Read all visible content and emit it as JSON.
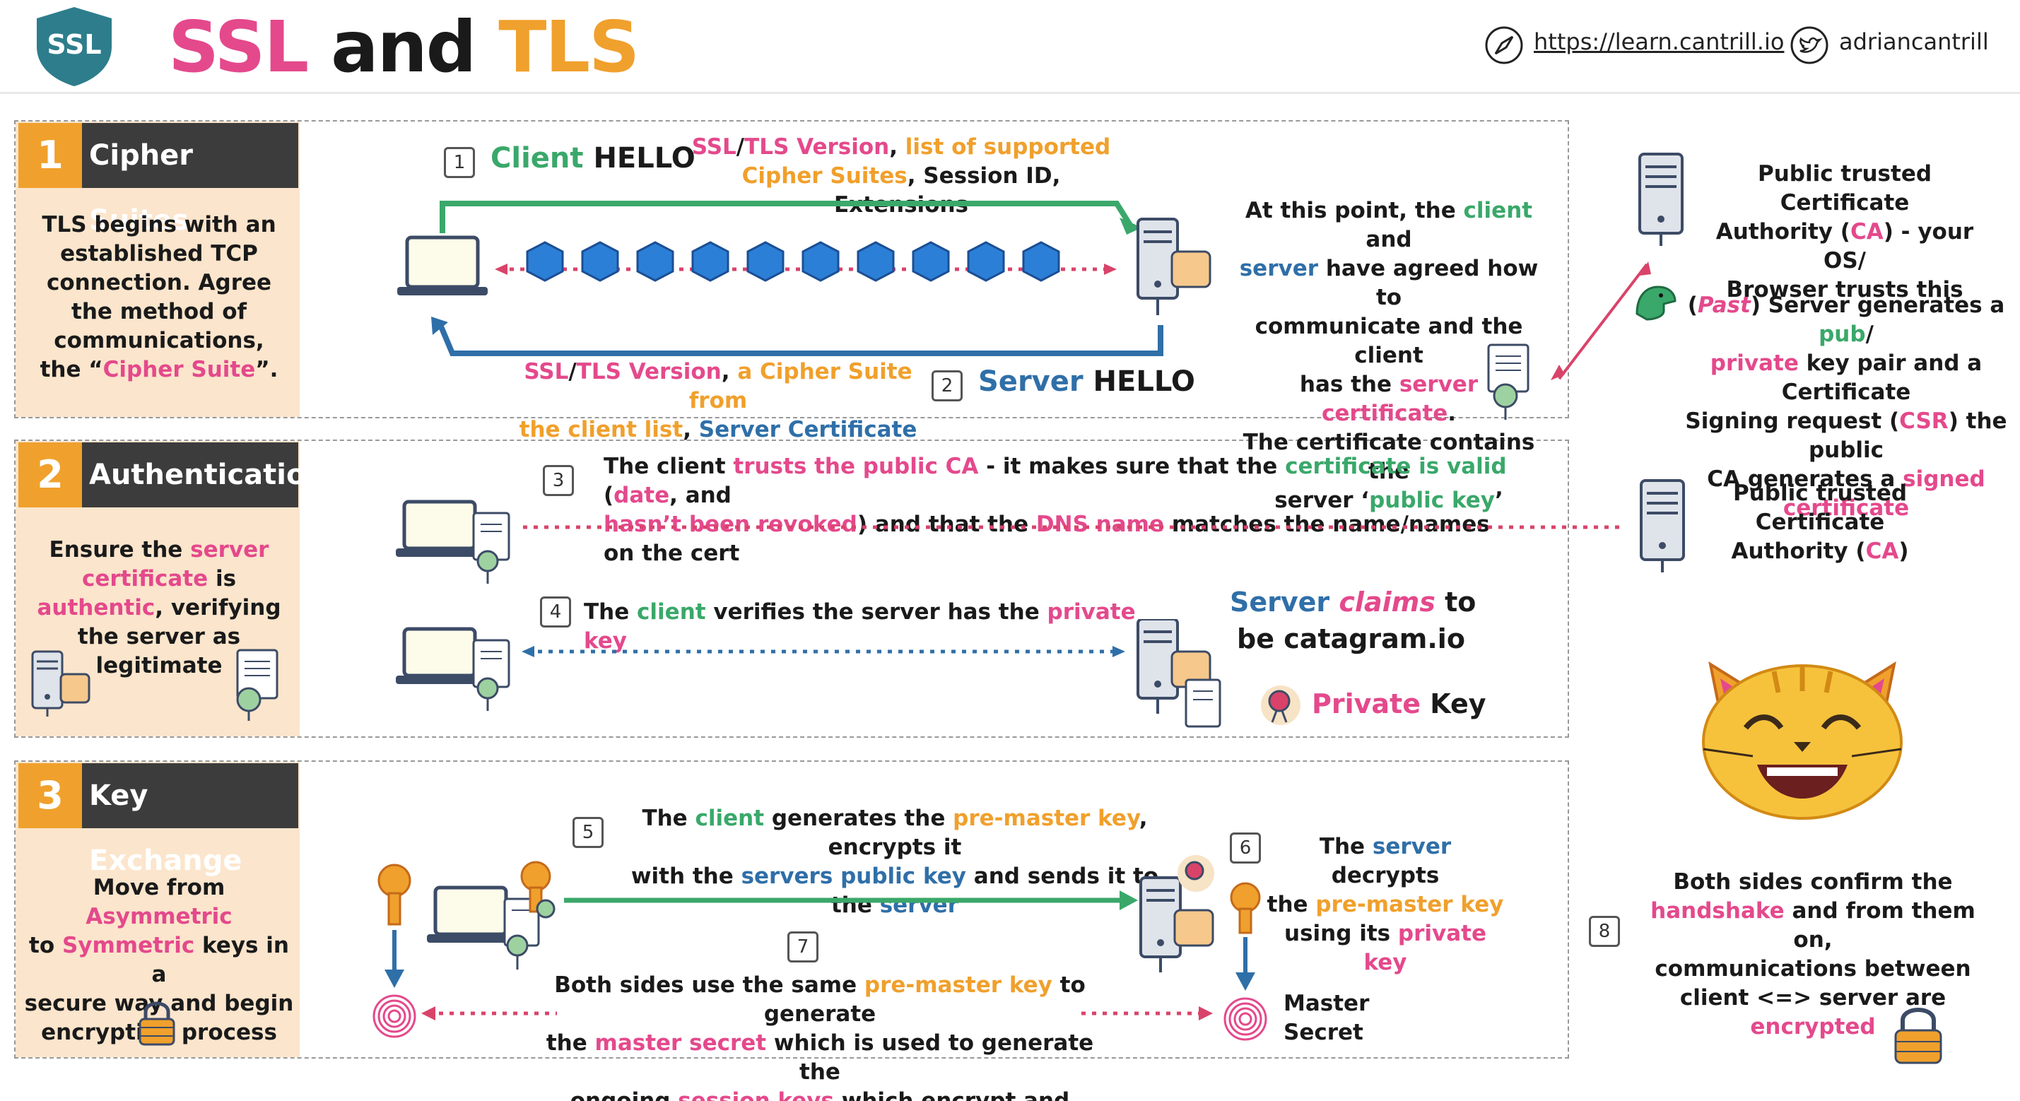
{
  "header": {
    "logo_text": "SSL",
    "title_part1": "SSL",
    "title_part2": "and",
    "title_part3": "TLS",
    "link": "https://learn.cantrill.io",
    "handle": "adriancantrill"
  },
  "sections": [
    {
      "num": "1",
      "title": "Cipher Suites",
      "side_text": [
        "TLS begins with an",
        "established TCP",
        "connection. Agree",
        "the method of",
        "communications,",
        "the “",
        "Cipher Suite",
        "”."
      ]
    },
    {
      "num": "2",
      "title": "Authentication",
      "side_text": [
        "Ensure the",
        "server",
        "certificate",
        "is",
        "authentic",
        ", verifying",
        "the server as",
        "legitimate"
      ]
    },
    {
      "num": "3",
      "title": "Key Exchange",
      "side_text": [
        "Move from",
        "Asymmetric",
        "to",
        "Symmetric",
        "keys in a",
        "secure way and begin",
        "encryption process"
      ]
    }
  ],
  "step1": {
    "num": "1",
    "label_a": "Client",
    "label_b": "HELLO",
    "desc": [
      "SSL",
      "/",
      "TLS Version",
      ",",
      "list of supported",
      "Cipher Suites",
      ", Session ID, Extensions"
    ]
  },
  "step2": {
    "num": "2",
    "label_a": "Server",
    "label_b": "HELLO",
    "desc": [
      "SSL",
      "/",
      "TLS Version",
      ",",
      "a Cipher Suite from",
      "the client list",
      ",",
      "Server Certificate"
    ]
  },
  "agreed": [
    "At this point, the",
    "client",
    "and",
    "server",
    "have agreed how to",
    "communicate and the client",
    "has the",
    "server certificate",
    ".",
    "The certificate contains the",
    "server ‘",
    "public key",
    "’"
  ],
  "ca_top": [
    "Public trusted Certificate",
    "Authority (",
    "CA",
    ") - your OS/",
    "Browser trusts this"
  ],
  "csr": [
    "(",
    "Past",
    ") Server generates a",
    "pub",
    "/",
    "private",
    "key pair and a Certificate",
    "Signing request (",
    "CSR",
    ") the public",
    "CA generates a",
    "signed certificate"
  ],
  "step3": {
    "num": "3",
    "text": [
      "The client",
      "trusts the public CA",
      "- it makes sure that the",
      "certificate is valid",
      "(",
      "date",
      ", and",
      "hasn’t been revoked",
      ") and that the",
      "DNS name",
      "matches the name/names on the cert"
    ]
  },
  "ca_mid": [
    "Public trusted",
    "Certificate",
    "Authority (",
    "CA",
    ")"
  ],
  "step4": {
    "num": "4",
    "text": [
      "The",
      "client",
      "verifies the server has the",
      "private key"
    ]
  },
  "claims": [
    "Server",
    "claims",
    "to",
    "be catagram.io"
  ],
  "private_key": [
    "Private",
    "Key"
  ],
  "step5": {
    "num": "5",
    "text": [
      "The",
      "client",
      "generates the",
      "pre-master key",
      ", encrypts it",
      "with the",
      "servers public key",
      "and sends it to the",
      "server"
    ]
  },
  "step6": {
    "num": "6",
    "text": [
      "The",
      "server",
      "decrypts",
      "the",
      "pre-master key",
      "using its",
      "private key"
    ]
  },
  "step7": {
    "num": "7",
    "text": [
      "Both sides use the same",
      "pre-master key",
      "to generate",
      "the",
      "master secret",
      "which is used to generate the",
      "ongoing",
      "session keys",
      "which encrypt and decrypt data"
    ]
  },
  "master_secret": [
    "Master",
    "Secret"
  ],
  "step8": {
    "num": "8",
    "text": [
      "Both sides confirm the",
      "handshake",
      "and from them on,",
      "communications between",
      "client <=> server are",
      "encrypted"
    ]
  }
}
